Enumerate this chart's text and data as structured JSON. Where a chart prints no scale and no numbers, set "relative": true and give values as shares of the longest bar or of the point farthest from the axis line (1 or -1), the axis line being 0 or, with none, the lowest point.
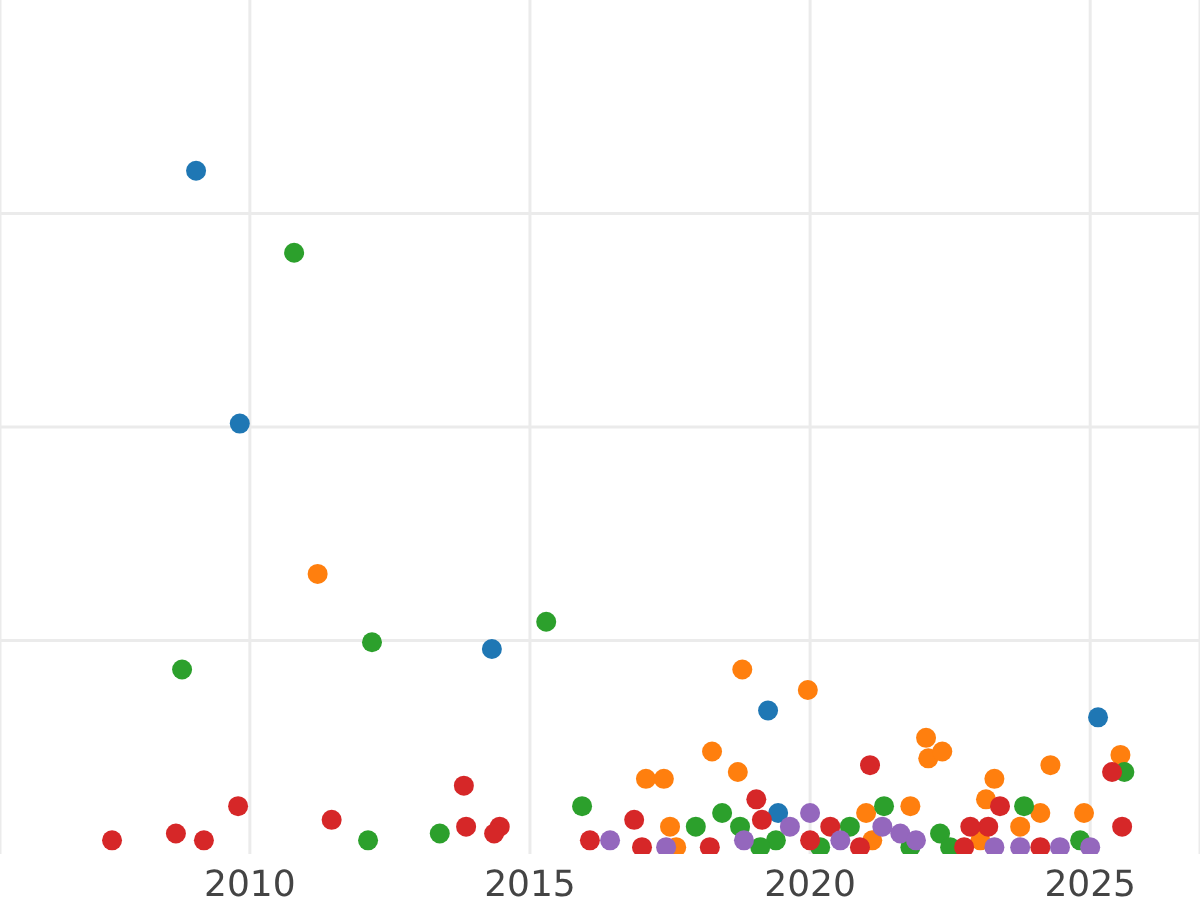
{
  "chart_data": {
    "type": "scatter",
    "relative": true,
    "xlim": [
      2005.54,
      2026.96
    ],
    "xticks": [
      2010,
      2015,
      2020,
      2025
    ],
    "grid": true,
    "marker": "circle",
    "legend": false,
    "series": [
      {
        "color": "#1f77b4",
        "x": [
          2009.04,
          2009.82,
          2014.32,
          2019.25,
          2025.14,
          2019.43
        ],
        "values": [
          1.0,
          0.63,
          0.3,
          0.21,
          0.2,
          0.06
        ]
      },
      {
        "color": "#ff7f0e",
        "x": [
          2011.21,
          2018.79,
          2019.96,
          2018.25,
          2017.07,
          2017.39,
          2018.71,
          2022.07,
          2022.11,
          2022.36,
          2024.29,
          2023.29,
          2023.14,
          2024.89,
          2025.54,
          2017.5,
          2021.0,
          2021.79,
          2024.11,
          2017.61,
          2021.11,
          2023.04,
          2023.75
        ],
        "values": [
          0.41,
          0.27,
          0.24,
          0.15,
          0.11,
          0.11,
          0.12,
          0.17,
          0.14,
          0.15,
          0.13,
          0.11,
          0.08,
          0.06,
          0.145,
          0.04,
          0.06,
          0.07,
          0.06,
          0.01,
          0.02,
          0.02,
          0.04
        ]
      },
      {
        "color": "#2ca02c",
        "x": [
          2010.79,
          2015.29,
          2012.18,
          2008.79,
          2015.93,
          2013.39,
          2012.11,
          2025.61,
          2021.32,
          2023.82,
          2018.43,
          2017.96,
          2018.75,
          2019.39,
          2020.71,
          2022.32,
          2022.5,
          2024.82,
          2019.11,
          2020.18,
          2021.79
        ],
        "values": [
          0.88,
          0.34,
          0.31,
          0.27,
          0.07,
          0.03,
          0.02,
          0.12,
          0.07,
          0.07,
          0.06,
          0.04,
          0.04,
          0.02,
          0.04,
          0.03,
          0.01,
          0.02,
          0.01,
          0.01,
          0.01
        ]
      },
      {
        "color": "#d62728",
        "x": [
          2007.54,
          2008.68,
          2009.18,
          2009.79,
          2011.46,
          2013.82,
          2013.86,
          2014.46,
          2014.36,
          2016.07,
          2016.86,
          2017.0,
          2019.04,
          2019.14,
          2021.07,
          2025.39,
          2023.39,
          2023.18,
          2022.86,
          2020.0,
          2020.36,
          2020.89,
          2018.21,
          2022.75,
          2025.57,
          2024.11
        ],
        "values": [
          0.02,
          0.03,
          0.02,
          0.07,
          0.05,
          0.1,
          0.04,
          0.04,
          0.03,
          0.02,
          0.05,
          0.01,
          0.08,
          0.05,
          0.13,
          0.12,
          0.07,
          0.04,
          0.04,
          0.02,
          0.04,
          0.01,
          0.01,
          0.01,
          0.04,
          0.01
        ]
      },
      {
        "color": "#9467bd",
        "x": [
          2016.43,
          2017.43,
          2018.82,
          2019.64,
          2020.0,
          2021.29,
          2021.61,
          2021.89,
          2020.54,
          2023.29,
          2024.46,
          2025.0,
          2023.75
        ],
        "values": [
          0.02,
          0.01,
          0.02,
          0.04,
          0.06,
          0.04,
          0.03,
          0.02,
          0.02,
          0.01,
          0.01,
          0.01,
          0.01
        ]
      }
    ]
  }
}
